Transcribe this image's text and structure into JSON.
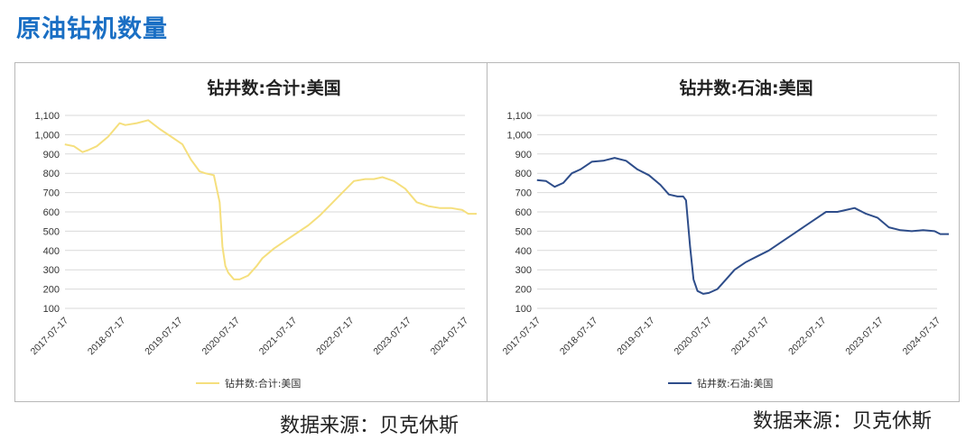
{
  "page": {
    "title": "原油钻机数量",
    "source_left": "数据来源：贝克休斯",
    "source_right": "数据来源：贝克休斯"
  },
  "colors": {
    "title": "#1a6fc4",
    "series_total": "#f5df7d",
    "series_oil": "#2e4d8a",
    "grid": "#d9d9d9"
  },
  "chart_data": [
    {
      "type": "line",
      "title": "钻井数:合计:美国",
      "xlabel": "",
      "ylabel": "",
      "ylim": [
        100,
        1100
      ],
      "yticks": [
        100,
        200,
        300,
        400,
        500,
        600,
        700,
        800,
        900,
        1000,
        1100
      ],
      "ytick_labels": [
        "100",
        "200",
        "300",
        "400",
        "500",
        "600",
        "700",
        "800",
        "900",
        "1,000",
        "1,100"
      ],
      "xticks": [
        "2017-07-17",
        "2018-07-17",
        "2019-07-17",
        "2020-07-17",
        "2021-07-17",
        "2022-07-17",
        "2023-07-17",
        "2024-07-17"
      ],
      "grid": true,
      "legend": "bottom",
      "series": [
        {
          "name": "钻井数:合计:美国",
          "x": [
            2017.54,
            2017.7,
            2017.85,
            2017.95,
            2018.1,
            2018.3,
            2018.5,
            2018.6,
            2018.8,
            2019.0,
            2019.2,
            2019.4,
            2019.6,
            2019.75,
            2019.9,
            2020.0,
            2020.15,
            2020.25,
            2020.3,
            2020.35,
            2020.4,
            2020.5,
            2020.6,
            2020.75,
            2020.9,
            2021.0,
            2021.2,
            2021.4,
            2021.6,
            2021.8,
            2022.0,
            2022.2,
            2022.4,
            2022.6,
            2022.8,
            2022.95,
            2023.1,
            2023.3,
            2023.5,
            2023.7,
            2023.9,
            2024.1,
            2024.3,
            2024.5,
            2024.6,
            2024.75
          ],
          "y": [
            950,
            940,
            910,
            920,
            940,
            990,
            1060,
            1050,
            1060,
            1075,
            1030,
            990,
            950,
            870,
            810,
            800,
            790,
            650,
            420,
            320,
            285,
            250,
            250,
            270,
            320,
            360,
            410,
            450,
            490,
            530,
            580,
            640,
            700,
            760,
            770,
            770,
            780,
            760,
            720,
            650,
            630,
            620,
            620,
            610,
            590,
            590
          ]
        }
      ]
    },
    {
      "type": "line",
      "title": "钻井数:石油:美国",
      "xlabel": "",
      "ylabel": "",
      "ylim": [
        100,
        1100
      ],
      "yticks": [
        100,
        200,
        300,
        400,
        500,
        600,
        700,
        800,
        900,
        1000,
        1100
      ],
      "ytick_labels": [
        "100",
        "200",
        "300",
        "400",
        "500",
        "600",
        "700",
        "800",
        "900",
        "1,000",
        "1,100"
      ],
      "xticks": [
        "2017-07-17",
        "2018-07-17",
        "2019-07-17",
        "2020-07-17",
        "2021-07-17",
        "2022-07-17",
        "2023-07-17",
        "2024-07-17"
      ],
      "grid": true,
      "legend": "bottom",
      "series": [
        {
          "name": "钻井数:石油:美国",
          "x": [
            2017.54,
            2017.7,
            2017.85,
            2018.0,
            2018.15,
            2018.3,
            2018.5,
            2018.7,
            2018.9,
            2019.1,
            2019.3,
            2019.5,
            2019.7,
            2019.85,
            2020.0,
            2020.1,
            2020.15,
            2020.22,
            2020.28,
            2020.35,
            2020.45,
            2020.55,
            2020.7,
            2020.85,
            2021.0,
            2021.2,
            2021.4,
            2021.6,
            2021.8,
            2022.0,
            2022.2,
            2022.4,
            2022.6,
            2022.8,
            2022.95,
            2023.1,
            2023.3,
            2023.5,
            2023.7,
            2023.9,
            2024.1,
            2024.3,
            2024.5,
            2024.6,
            2024.75
          ],
          "y": [
            765,
            760,
            730,
            750,
            800,
            820,
            860,
            865,
            880,
            865,
            820,
            790,
            740,
            690,
            680,
            680,
            660,
            420,
            250,
            190,
            175,
            180,
            200,
            250,
            300,
            340,
            370,
            400,
            440,
            480,
            520,
            560,
            600,
            600,
            610,
            620,
            590,
            570,
            520,
            505,
            500,
            505,
            500,
            485,
            485
          ]
        }
      ]
    }
  ]
}
